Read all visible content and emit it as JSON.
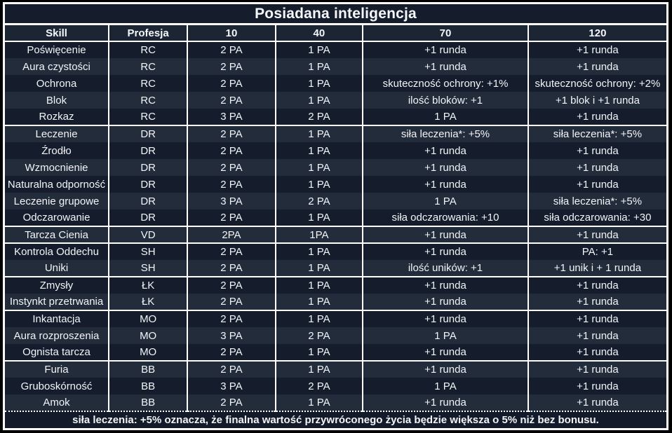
{
  "title": "Posiadana inteligencja",
  "columns": [
    "Skill",
    "Profesja",
    "10",
    "40",
    "70",
    "120"
  ],
  "groups": [
    {
      "profession": "RC",
      "rows": [
        [
          "Poświęcenie",
          "RC",
          "2 PA",
          "1 PA",
          "+1 runda",
          "+1 runda"
        ],
        [
          "Aura czystości",
          "RC",
          "2 PA",
          "1 PA",
          "+1 runda",
          "+1 runda"
        ],
        [
          "Ochrona",
          "RC",
          "2 PA",
          "1 PA",
          "skuteczność ochrony: +1%",
          "skuteczność ochrony: +2%"
        ],
        [
          "Blok",
          "RC",
          "2 PA",
          "1 PA",
          "ilość bloków: +1",
          "+1 blok i +1 runda"
        ],
        [
          "Rozkaz",
          "RC",
          "3 PA",
          "2 PA",
          "1 PA",
          "+1 runda"
        ]
      ]
    },
    {
      "profession": "DR",
      "rows": [
        [
          "Leczenie",
          "DR",
          "2 PA",
          "1 PA",
          "siła leczenia*: +5%",
          "siła leczenia*: +5%"
        ],
        [
          "Źrodło",
          "DR",
          "2 PA",
          "1 PA",
          "+1 runda",
          "+1 runda"
        ],
        [
          "Wzmocnienie",
          "DR",
          "2 PA",
          "1 PA",
          "+1 runda",
          "+1 runda"
        ],
        [
          "Naturalna odporność",
          "DR",
          "2 PA",
          "1 PA",
          "+1 runda",
          "+1 runda"
        ],
        [
          "Leczenie grupowe",
          "DR",
          "3 PA",
          "2 PA",
          "1 PA",
          "siła leczenia*: +5%"
        ],
        [
          "Odczarowanie",
          "DR",
          "2 PA",
          "1 PA",
          "siła odczarowania: +10",
          "siła odczarowania: +30"
        ]
      ]
    },
    {
      "profession": "VD",
      "rows": [
        [
          "Tarcza Cienia",
          "VD",
          "2PA",
          "1PA",
          "+1 runda",
          "+1 runda"
        ]
      ]
    },
    {
      "profession": "SH",
      "rows": [
        [
          "Kontrola Oddechu",
          "SH",
          "2 PA",
          "1 PA",
          "+1 runda",
          "PA: +1"
        ],
        [
          "Uniki",
          "SH",
          "2 PA",
          "1 PA",
          "ilość uników: +1",
          "+1 unik i + 1 runda"
        ]
      ]
    },
    {
      "profession": "ŁK",
      "rows": [
        [
          "Zmysły",
          "ŁK",
          "2 PA",
          "1 PA",
          "+1 runda",
          "+1 runda"
        ],
        [
          "Instynkt przetrwania",
          "ŁK",
          "2 PA",
          "1 PA",
          "+1 runda",
          "+1 runda"
        ]
      ]
    },
    {
      "profession": "MO",
      "rows": [
        [
          "Inkantacja",
          "MO",
          "2 PA",
          "1 PA",
          "+1 runda",
          "+1 runda"
        ],
        [
          "Aura rozproszenia",
          "MO",
          "3 PA",
          "2 PA",
          "1 PA",
          "+1 runda"
        ],
        [
          "Ognista tarcza",
          "MO",
          "2 PA",
          "1 PA",
          "+1 runda",
          "+1 runda"
        ]
      ]
    },
    {
      "profession": "BB",
      "rows": [
        [
          "Furia",
          "BB",
          "2 PA",
          "1 PA",
          "+1 runda",
          "+1 runda"
        ],
        [
          "Gruboskórność",
          "BB",
          "3 PA",
          "2 PA",
          "1 PA",
          "+1 runda"
        ],
        [
          "Amok",
          "BB",
          "2 PA",
          "1 PA",
          "+1 runda",
          "+1 runda"
        ]
      ]
    }
  ],
  "footnote": "siła leczenia: +5% oznacza, że finalna wartość przywróconego życia będzie większa o 5% niż bez bonusu.",
  "colors": {
    "row_dark": "#151d2c",
    "row_light": "#232c3b",
    "header_bg": "#1c2534",
    "border": "#ffffff",
    "text": "#f2f4f8",
    "page_bg": "#000000"
  }
}
